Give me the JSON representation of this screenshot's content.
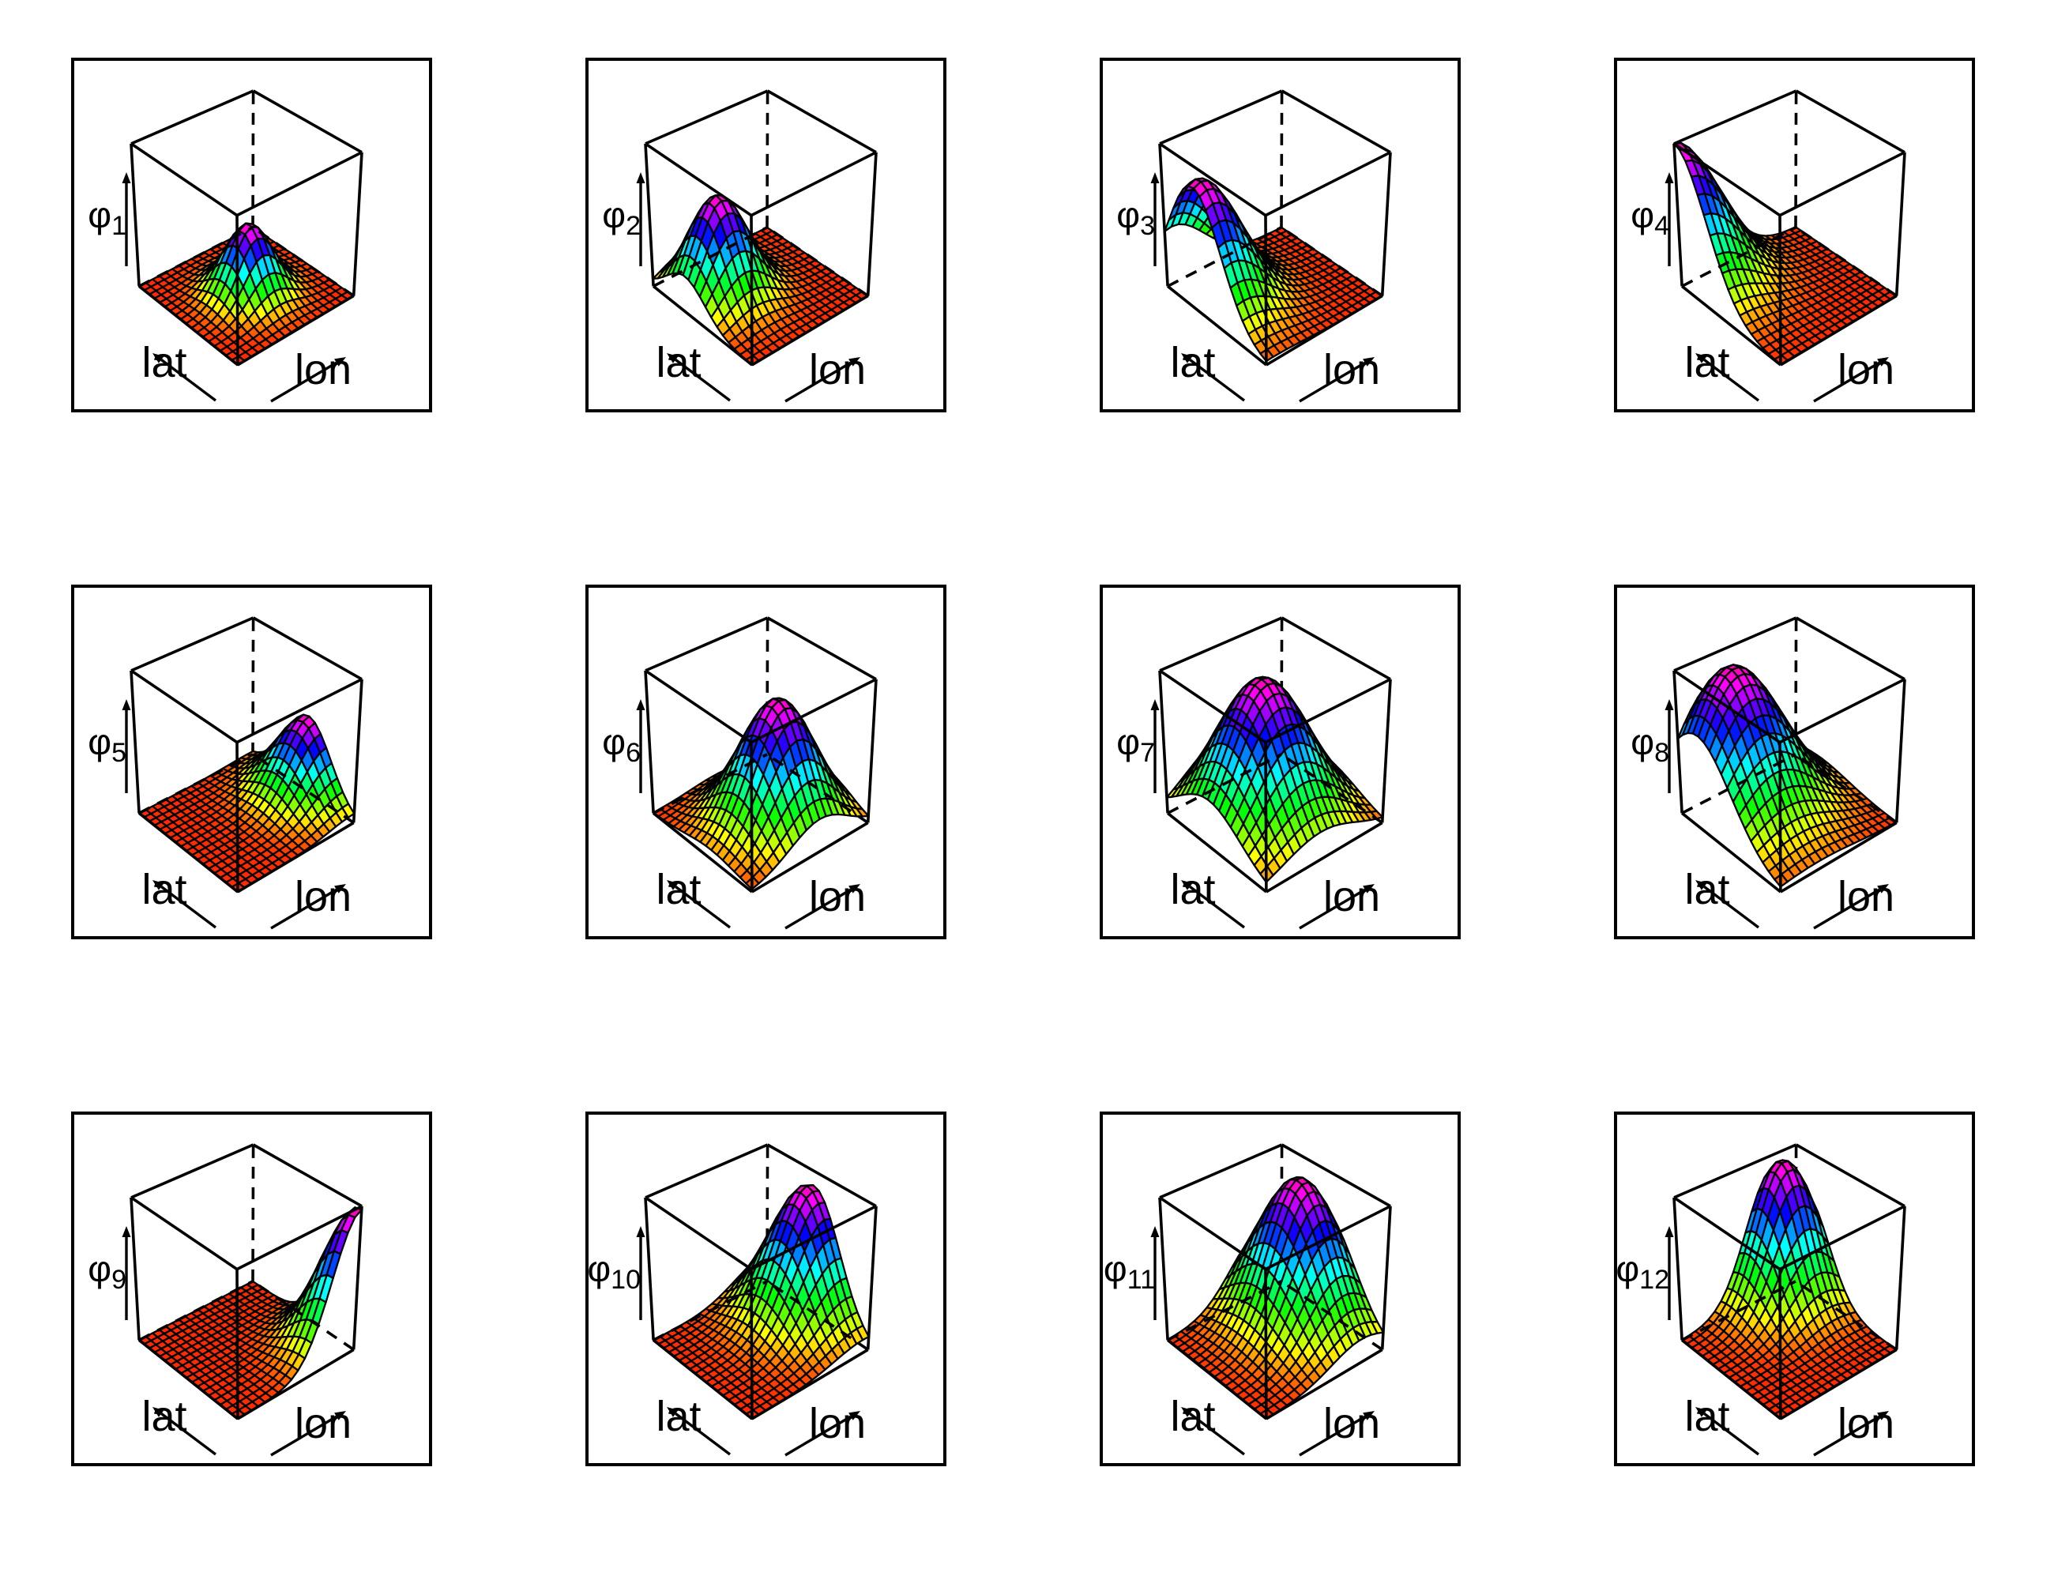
{
  "figure": {
    "background": "#ffffff",
    "rows": 3,
    "cols": 4,
    "description": "Grid of twelve 3D perspective surface plots of bivariate spatial basis functions over longitude and latitude"
  },
  "chart_data": {
    "type": "surface",
    "title": "",
    "xlabel": "lon",
    "ylabel": "lat",
    "x_range": [
      0,
      1
    ],
    "y_range": [
      0,
      1
    ],
    "z_range": [
      0,
      1
    ],
    "grid_facets": 18,
    "legend": "none",
    "colormap": {
      "name": "rainbow",
      "low_hue": 10,
      "high_hue": 318,
      "saturation": "100%",
      "lightness": "50%",
      "low_color": "#ff2a00",
      "high_color": "#ff00b3",
      "normalization": "per-panel surface maximum"
    },
    "stroke_color": "#000000",
    "z_symbol": "φ",
    "panels": [
      {
        "id": 1,
        "symbol": "φ",
        "subscript": "1",
        "center_lon": 0.5,
        "center_lat": 0.47,
        "amplitude": 0.5,
        "sigma_lon": 0.16,
        "sigma_lat": 0.16
      },
      {
        "id": 2,
        "symbol": "φ",
        "subscript": "2",
        "center_lon": 0.28,
        "center_lat": 0.65,
        "amplitude": 0.7,
        "sigma_lon": 0.2,
        "sigma_lat": 0.2
      },
      {
        "id": 3,
        "symbol": "φ",
        "subscript": "3",
        "center_lon": 0.06,
        "center_lat": 0.68,
        "amplitude": 0.88,
        "sigma_lon": 0.26,
        "sigma_lat": 0.26
      },
      {
        "id": 4,
        "symbol": "φ",
        "subscript": "4",
        "center_lon": 0.0,
        "center_lat": 1.0,
        "amplitude": 1.0,
        "sigma_lon": 0.3,
        "sigma_lat": 0.3
      },
      {
        "id": 5,
        "symbol": "φ",
        "subscript": "5",
        "center_lon": 1.0,
        "center_lat": 0.45,
        "amplitude": 0.55,
        "sigma_lon": 0.22,
        "sigma_lat": 0.22
      },
      {
        "id": 6,
        "symbol": "φ",
        "subscript": "6",
        "center_lon": 0.56,
        "center_lat": 0.4,
        "amplitude": 0.86,
        "sigma_lon": 0.25,
        "sigma_lat": 0.25
      },
      {
        "id": 7,
        "symbol": "φ",
        "subscript": "7",
        "center_lon": 0.45,
        "center_lat": 0.55,
        "amplitude": 0.97,
        "sigma_lon": 0.31,
        "sigma_lat": 0.31
      },
      {
        "id": 8,
        "symbol": "φ",
        "subscript": "8",
        "center_lon": 0.3,
        "center_lat": 0.79,
        "amplitude": 1.0,
        "sigma_lon": 0.33,
        "sigma_lat": 0.33
      },
      {
        "id": 9,
        "symbol": "φ",
        "subscript": "9",
        "center_lon": 1.0,
        "center_lat": 0.02,
        "amplitude": 0.98,
        "sigma_lon": 0.23,
        "sigma_lat": 0.23
      },
      {
        "id": 10,
        "symbol": "φ",
        "subscript": "10",
        "center_lon": 0.95,
        "center_lat": 0.55,
        "amplitude": 0.92,
        "sigma_lon": 0.26,
        "sigma_lat": 0.26
      },
      {
        "id": 11,
        "symbol": "φ",
        "subscript": "11",
        "center_lon": 0.8,
        "center_lat": 0.6,
        "amplitude": 1.0,
        "sigma_lon": 0.26,
        "sigma_lat": 0.32
      },
      {
        "id": 12,
        "symbol": "φ",
        "subscript": "12",
        "center_lon": 0.8,
        "center_lat": 0.9,
        "amplitude": 1.0,
        "sigma_lon": 0.24,
        "sigma_lat": 0.24
      }
    ]
  }
}
